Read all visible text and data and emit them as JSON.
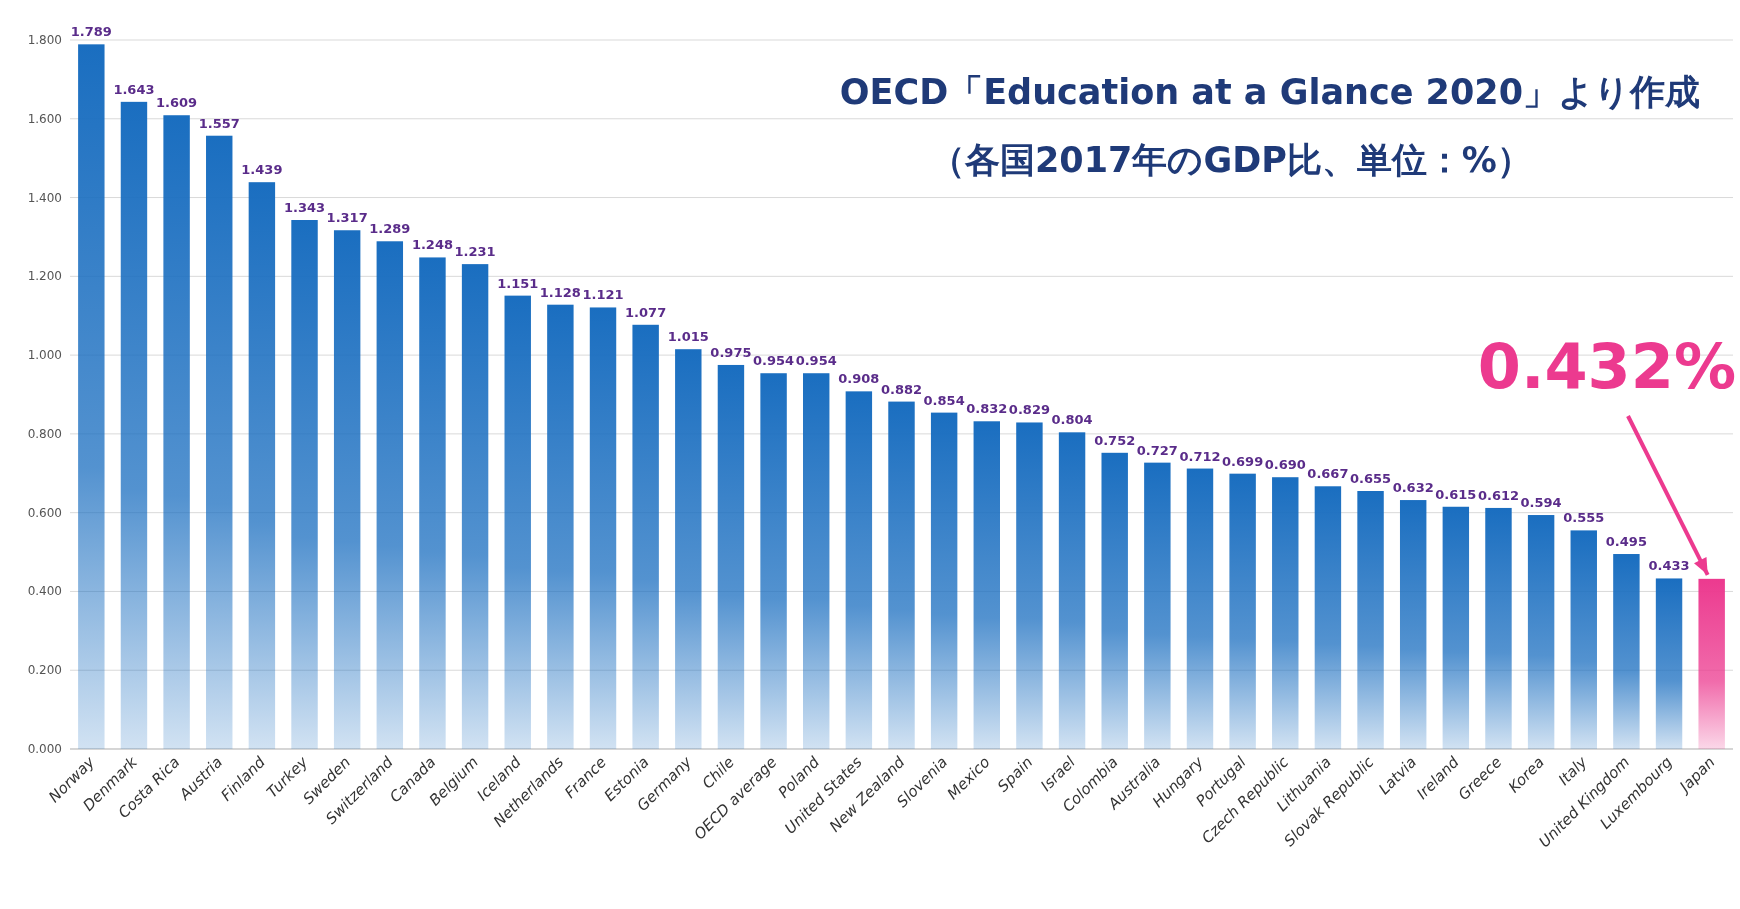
{
  "chart_data": {
    "type": "bar",
    "title": "OECD「Education at a Glance 2020」より作成",
    "subtitle": "（各国2017年のGDP比、単位：%）",
    "categories": [
      "Norway",
      "Denmark",
      "Costa Rica",
      "Austria",
      "Finland",
      "Turkey",
      "Sweden",
      "Switzerland",
      "Canada",
      "Belgium",
      "Iceland",
      "Netherlands",
      "France",
      "Estonia",
      "Germany",
      "Chile",
      "OECD average",
      "Poland",
      "United States",
      "New Zealand",
      "Slovenia",
      "Mexico",
      "Spain",
      "Israel",
      "Colombia",
      "Australia",
      "Hungary",
      "Portugal",
      "Czech Republic",
      "Lithuania",
      "Slovak Republic",
      "Latvia",
      "Ireland",
      "Greece",
      "Korea",
      "Italy",
      "United Kingdom",
      "Luxembourg",
      "Japan"
    ],
    "values": [
      1.789,
      1.643,
      1.609,
      1.557,
      1.439,
      1.343,
      1.317,
      1.289,
      1.248,
      1.231,
      1.151,
      1.128,
      1.121,
      1.077,
      1.015,
      0.975,
      0.954,
      0.954,
      0.908,
      0.882,
      0.854,
      0.832,
      0.829,
      0.804,
      0.752,
      0.727,
      0.712,
      0.699,
      0.69,
      0.667,
      0.655,
      0.632,
      0.615,
      0.612,
      0.594,
      0.555,
      0.495,
      0.433,
      0.432
    ],
    "value_labels": [
      "1.789",
      "1.643",
      "1.609",
      "1.557",
      "1.439",
      "1.343",
      "1.317",
      "1.289",
      "1.248",
      "1.231",
      "1.151",
      "1.128",
      "1.121",
      "1.077",
      "1.015",
      "0.975",
      "0.954",
      "0.954",
      "0.908",
      "0.882",
      "0.854",
      "0.832",
      "0.829",
      "0.804",
      "0.752",
      "0.727",
      "0.712",
      "0.699",
      "0.690",
      "0.667",
      "0.655",
      "0.632",
      "0.615",
      "0.612",
      "0.594",
      "0.555",
      "0.495",
      "0.433",
      null
    ],
    "colors": [
      "#1a6ec0",
      "#1a6ec0",
      "#1a6ec0",
      "#1a6ec0",
      "#1a6ec0",
      "#1a6ec0",
      "#1a6ec0",
      "#1a6ec0",
      "#1a6ec0",
      "#1a6ec0",
      "#1a6ec0",
      "#1a6ec0",
      "#1a6ec0",
      "#1a6ec0",
      "#1a6ec0",
      "#1a6ec0",
      "#1a6ec0",
      "#1a6ec0",
      "#1a6ec0",
      "#1a6ec0",
      "#1a6ec0",
      "#1a6ec0",
      "#1a6ec0",
      "#1a6ec0",
      "#1a6ec0",
      "#1a6ec0",
      "#1a6ec0",
      "#1a6ec0",
      "#1a6ec0",
      "#1a6ec0",
      "#1a6ec0",
      "#1a6ec0",
      "#1a6ec0",
      "#1a6ec0",
      "#1a6ec0",
      "#1a6ec0",
      "#1a6ec0",
      "#1a6ec0",
      "#ec3a8f"
    ],
    "annotations": [
      {
        "text": "0.432%",
        "x": "Japan",
        "y": 0.432
      }
    ],
    "ylim": [
      0,
      1.8
    ],
    "yticks": [
      {
        "value": 0,
        "label": "0.000"
      },
      {
        "value": 0.2,
        "label": "0.200"
      },
      {
        "value": 0.4,
        "label": "0.400"
      },
      {
        "value": 0.6,
        "label": "0.600"
      },
      {
        "value": 0.8,
        "label": "0.800"
      },
      {
        "value": 1.0,
        "label": "1.000"
      },
      {
        "value": 1.2,
        "label": "1.200"
      },
      {
        "value": 1.4,
        "label": "1.400"
      },
      {
        "value": 1.6,
        "label": "1.600"
      },
      {
        "value": 1.8,
        "label": "1.800"
      }
    ],
    "grid": "y"
  }
}
